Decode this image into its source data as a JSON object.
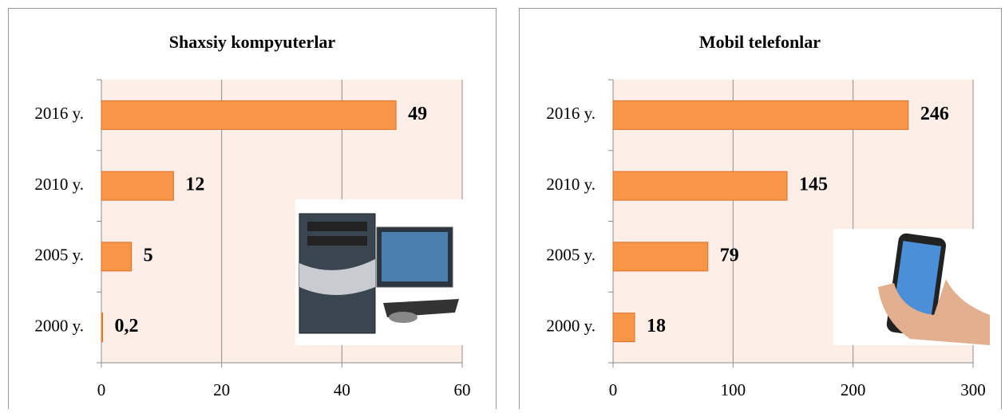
{
  "chart_data": [
    {
      "type": "bar",
      "orientation": "horizontal",
      "title": "Shaxsiy kompyuterlar",
      "categories": [
        "2016 y.",
        "2010 y.",
        "2005 y.",
        "2000 y."
      ],
      "values": [
        49,
        12,
        5,
        0.2
      ],
      "value_labels": [
        "49",
        "12",
        "5",
        "0,2"
      ],
      "color": "#f79646",
      "xlim": [
        0,
        60
      ],
      "xticks": [
        0,
        20,
        40,
        60
      ],
      "grid": true
    },
    {
      "type": "bar",
      "orientation": "horizontal",
      "title": "Mobil telefonlar",
      "categories": [
        "2016 y.",
        "2010 y.",
        "2005 y.",
        "2000 y."
      ],
      "values": [
        246,
        145,
        79,
        18
      ],
      "value_labels": [
        "246",
        "145",
        "79",
        "18"
      ],
      "color": "#f79646",
      "xlim": [
        0,
        300
      ],
      "xticks": [
        0,
        100,
        200,
        300
      ],
      "grid": true
    }
  ]
}
